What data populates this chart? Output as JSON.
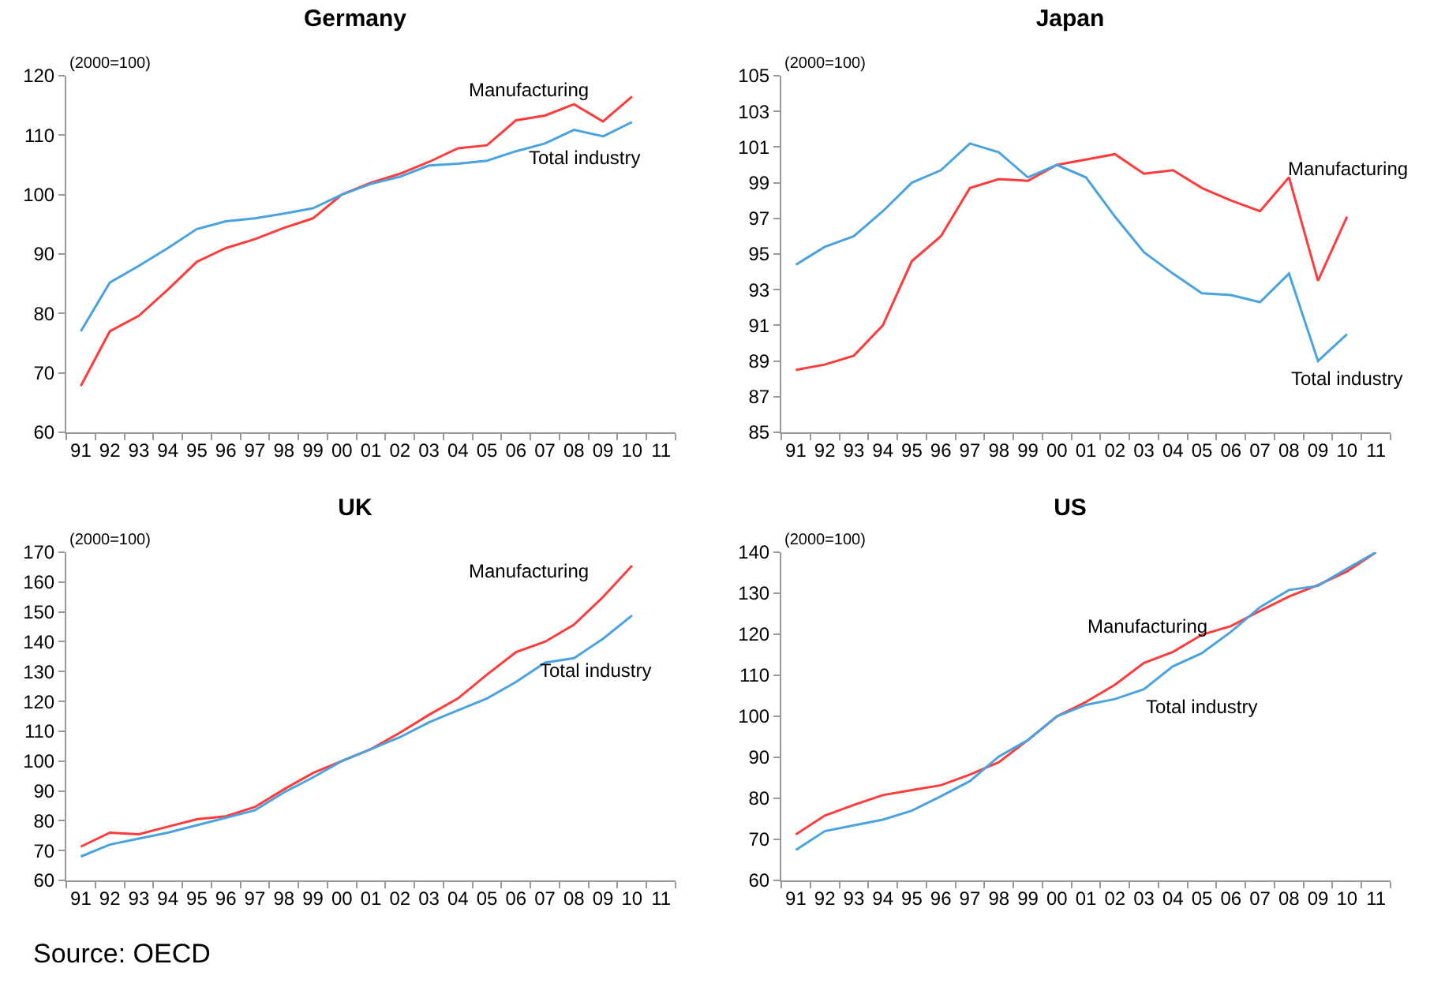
{
  "chart_data": [
    {
      "type": "line",
      "title": "Germany",
      "ylabel": "(2000=100)",
      "categories": [
        "91",
        "92",
        "93",
        "94",
        "95",
        "96",
        "97",
        "98",
        "99",
        "00",
        "01",
        "02",
        "03",
        "04",
        "05",
        "06",
        "07",
        "08",
        "09",
        "10",
        "11"
      ],
      "ylim": [
        60,
        120
      ],
      "yticks": [
        60,
        70,
        80,
        90,
        100,
        110,
        120
      ],
      "grid": false,
      "legend": false,
      "series": [
        {
          "name": "Manufacturing",
          "color": "#ff3b3b",
          "values": [
            67.8,
            77,
            79.6,
            84,
            88.7,
            91,
            92.5,
            94.4,
            96,
            100,
            102,
            103.5,
            105.5,
            107.8,
            108.3,
            112.5,
            113.3,
            115.2,
            112.3,
            116.5,
            null
          ]
        },
        {
          "name": "Total industry",
          "color": "#4aa3df",
          "values": [
            77,
            85.2,
            88,
            91,
            94.2,
            95.5,
            96,
            96.8,
            97.7,
            100,
            101.8,
            103,
            104.9,
            105.2,
            105.7,
            107.3,
            108.6,
            110.9,
            109.8,
            112.2,
            null
          ]
        }
      ]
    },
    {
      "type": "line",
      "title": "Japan",
      "ylabel": "(2000=100)",
      "categories": [
        "91",
        "92",
        "93",
        "94",
        "95",
        "96",
        "97",
        "98",
        "99",
        "00",
        "01",
        "02",
        "03",
        "04",
        "05",
        "06",
        "07",
        "08",
        "09",
        "10",
        "11"
      ],
      "ylim": [
        85,
        105
      ],
      "yticks": [
        85,
        87,
        89,
        91,
        93,
        95,
        97,
        99,
        101,
        103,
        105
      ],
      "grid": false,
      "legend": false,
      "series": [
        {
          "name": "Manufacturing",
          "color": "#ff3b3b",
          "values": [
            88.5,
            88.8,
            89.3,
            91,
            94.6,
            96,
            98.7,
            99.2,
            99.1,
            100,
            100.3,
            100.6,
            99.5,
            99.7,
            98.7,
            98,
            97.4,
            99.3,
            93.5,
            97.1,
            null
          ]
        },
        {
          "name": "Total industry",
          "color": "#4aa3df",
          "values": [
            94.4,
            95.4,
            96,
            97.4,
            99,
            99.7,
            101.2,
            100.7,
            99.3,
            100,
            99.3,
            97.1,
            95.1,
            93.9,
            92.8,
            92.7,
            92.3,
            93.9,
            89,
            90.5,
            null
          ]
        }
      ]
    },
    {
      "type": "line",
      "title": "UK",
      "ylabel": "(2000=100)",
      "categories": [
        "91",
        "92",
        "93",
        "94",
        "95",
        "96",
        "97",
        "98",
        "99",
        "00",
        "01",
        "02",
        "03",
        "04",
        "05",
        "06",
        "07",
        "08",
        "09",
        "10",
        "11"
      ],
      "ylim": [
        60,
        170
      ],
      "yticks": [
        60,
        70,
        80,
        90,
        100,
        110,
        120,
        130,
        140,
        150,
        160,
        170
      ],
      "grid": false,
      "legend": false,
      "annotations": [
        "Source: OECD"
      ],
      "series": [
        {
          "name": "Manufacturing",
          "color": "#ff3b3b",
          "values": [
            71.3,
            76,
            75.5,
            78,
            80.5,
            81.5,
            84.6,
            90.5,
            96,
            100,
            104,
            109.5,
            115.5,
            121,
            129,
            136.5,
            140,
            145.7,
            155,
            165.5,
            null
          ]
        },
        {
          "name": "Total industry",
          "color": "#4aa3df",
          "values": [
            68,
            72,
            74,
            76,
            78.5,
            81,
            83.5,
            89.5,
            94.5,
            100,
            104,
            108,
            113,
            117,
            121,
            126.5,
            133,
            134.5,
            141,
            148.8,
            null
          ]
        }
      ]
    },
    {
      "type": "line",
      "title": "US",
      "ylabel": "(2000=100)",
      "categories": [
        "91",
        "92",
        "93",
        "94",
        "95",
        "96",
        "97",
        "98",
        "99",
        "00",
        "01",
        "02",
        "03",
        "04",
        "05",
        "06",
        "07",
        "08",
        "09",
        "10",
        "11"
      ],
      "ylim": [
        60,
        140
      ],
      "yticks": [
        60,
        70,
        80,
        90,
        100,
        110,
        120,
        130,
        140
      ],
      "grid": false,
      "legend": false,
      "series": [
        {
          "name": "Manufacturing",
          "color": "#ff3b3b",
          "values": [
            71.2,
            75.8,
            78.4,
            80.8,
            82,
            83.2,
            85.8,
            88.8,
            94.2,
            100,
            103.5,
            107.7,
            113,
            115.7,
            119.9,
            122,
            125.7,
            129.2,
            132,
            135.3,
            140
          ]
        },
        {
          "name": "Total industry",
          "color": "#4aa3df",
          "values": [
            67.4,
            72,
            73.4,
            74.8,
            77,
            80.5,
            84.2,
            90.2,
            94.2,
            100,
            102.8,
            104.2,
            106.6,
            112.2,
            115.4,
            120.6,
            126.6,
            130.8,
            131.8,
            136,
            140
          ]
        }
      ]
    }
  ]
}
